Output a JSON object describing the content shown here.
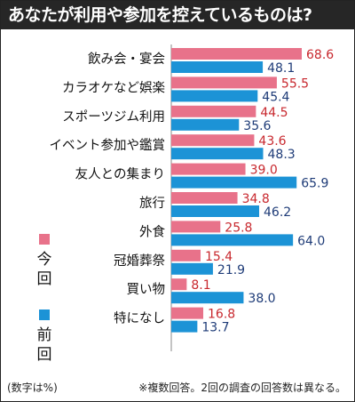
{
  "title": "あなたが利用や参加を控えているものは?",
  "footnote_left": "(数字は%)",
  "footnote_right": "※複数回答。2回の調査の回答数は異なる。",
  "colors": {
    "current": "#e8728a",
    "previous": "#1c93d6",
    "current_text": "#c8282e",
    "previous_text": "#1f3c78"
  },
  "chart_data": {
    "type": "bar",
    "orientation": "horizontal",
    "categories": [
      "飲み会・宴会",
      "カラオケなど娯楽",
      "スポーツジム利用",
      "イベント参加や鑑賞",
      "友人との集まり",
      "旅行",
      "外食",
      "冠婚葬祭",
      "買い物",
      "特になし"
    ],
    "series": [
      {
        "name": "今回",
        "values": [
          68.6,
          55.5,
          44.5,
          43.6,
          39.0,
          34.8,
          25.8,
          15.4,
          8.1,
          16.8
        ]
      },
      {
        "name": "前回",
        "values": [
          48.1,
          45.4,
          35.6,
          48.3,
          65.9,
          46.2,
          64.0,
          21.9,
          38.0,
          13.7
        ]
      }
    ],
    "value_labels": {
      "今回": [
        "68.6",
        "55.5",
        "44.5",
        "43.6",
        "39.0",
        "34.8",
        "25.8",
        "15.4",
        "8.1",
        "16.8"
      ],
      "前回": [
        "48.1",
        "45.4",
        "35.6",
        "48.3",
        "65.9",
        "46.2",
        "64.0",
        "21.9",
        "38.0",
        "13.7"
      ]
    },
    "xlim": [
      0,
      70
    ],
    "legend": {
      "placement": "left",
      "orientation": "vertical"
    },
    "grid": false
  }
}
